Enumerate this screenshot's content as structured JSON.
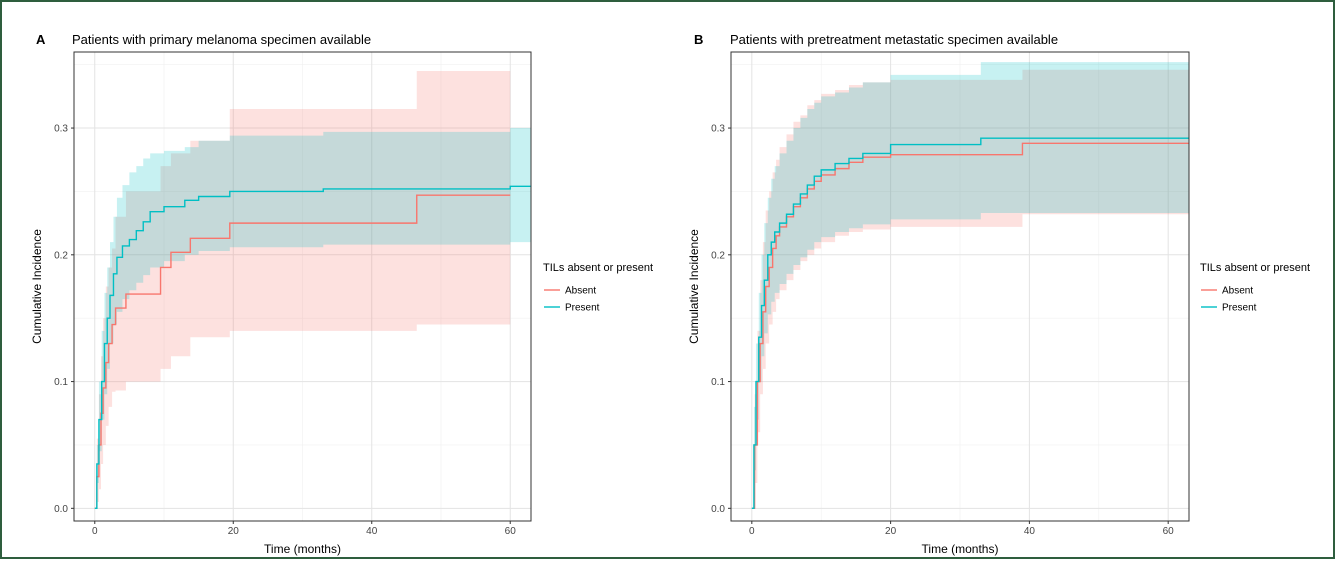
{
  "chart_data": [
    {
      "type": "line",
      "panel_label": "A",
      "title": "Patients with primary melanoma specimen available",
      "xlabel": "Time (months)",
      "ylabel": "Cumulative Incidence",
      "xlim": [
        -3,
        63
      ],
      "ylim": [
        -0.01,
        0.36
      ],
      "x_ticks": [
        0,
        20,
        40,
        60
      ],
      "y_ticks": [
        0.0,
        0.1,
        0.2,
        0.3
      ],
      "y_tick_labels": [
        "0.0",
        "0.1",
        "0.2",
        "0.3"
      ],
      "grid": true,
      "legend_position": "right",
      "legend": {
        "title": "TILs absent or present",
        "entries": [
          {
            "label": "Absent",
            "color": "#F8766D"
          },
          {
            "label": "Present",
            "color": "#00BFC4"
          }
        ]
      },
      "series": [
        {
          "name": "Absent",
          "color": "#F8766D",
          "x": [
            0,
            0.3,
            0.6,
            0.9,
            1.2,
            1.6,
            2.0,
            2.5,
            3.0,
            4.5,
            9.5,
            11.0,
            13.8,
            19.5,
            46.5,
            60
          ],
          "y": [
            0,
            0.025,
            0.05,
            0.075,
            0.095,
            0.115,
            0.13,
            0.145,
            0.158,
            0.169,
            0.19,
            0.202,
            0.213,
            0.225,
            0.247,
            0.247
          ],
          "ci_upper": [
            0,
            0.055,
            0.09,
            0.12,
            0.15,
            0.175,
            0.19,
            0.205,
            0.23,
            0.25,
            0.27,
            0.28,
            0.29,
            0.315,
            0.345,
            0.345
          ],
          "ci_lower": [
            0,
            0.005,
            0.015,
            0.035,
            0.05,
            0.065,
            0.08,
            0.092,
            0.093,
            0.1,
            0.11,
            0.12,
            0.135,
            0.14,
            0.145,
            0.158
          ]
        },
        {
          "name": "Present",
          "color": "#00BFC4",
          "x": [
            0,
            0.3,
            0.6,
            1.0,
            1.4,
            1.8,
            2.2,
            2.7,
            3.2,
            4.0,
            5.0,
            6.0,
            7.0,
            8.0,
            10.0,
            13.0,
            15.0,
            19.5,
            33.0,
            60,
            63
          ],
          "y": [
            0,
            0.035,
            0.07,
            0.1,
            0.13,
            0.15,
            0.168,
            0.185,
            0.198,
            0.207,
            0.212,
            0.219,
            0.226,
            0.234,
            0.238,
            0.243,
            0.246,
            0.25,
            0.252,
            0.254,
            0.254
          ],
          "ci_upper": [
            0,
            0.05,
            0.1,
            0.14,
            0.17,
            0.19,
            0.21,
            0.23,
            0.245,
            0.255,
            0.265,
            0.27,
            0.276,
            0.28,
            0.282,
            0.285,
            0.29,
            0.294,
            0.297,
            0.3,
            0.3
          ],
          "ci_lower": [
            0,
            0.02,
            0.045,
            0.07,
            0.09,
            0.11,
            0.13,
            0.145,
            0.155,
            0.165,
            0.172,
            0.178,
            0.184,
            0.19,
            0.195,
            0.2,
            0.203,
            0.206,
            0.208,
            0.21,
            0.21
          ]
        }
      ]
    },
    {
      "type": "line",
      "panel_label": "B",
      "title": "Patients with pretreatment metastatic specimen available",
      "xlabel": "Time (months)",
      "ylabel": "Cumulative Incidence",
      "xlim": [
        -3,
        63
      ],
      "ylim": [
        -0.01,
        0.36
      ],
      "x_ticks": [
        0,
        20,
        40,
        60
      ],
      "y_ticks": [
        0.0,
        0.1,
        0.2,
        0.3
      ],
      "y_tick_labels": [
        "0.0",
        "0.1",
        "0.2",
        "0.3"
      ],
      "grid": true,
      "legend_position": "right",
      "legend": {
        "title": "TILs absent or present",
        "entries": [
          {
            "label": "Absent",
            "color": "#F8766D"
          },
          {
            "label": "Present",
            "color": "#00BFC4"
          }
        ]
      },
      "series": [
        {
          "name": "Absent",
          "color": "#F8766D",
          "x": [
            0,
            0.4,
            0.8,
            1.2,
            1.6,
            2.0,
            2.5,
            3.0,
            3.5,
            4.0,
            5.0,
            6.0,
            7.0,
            8.0,
            9.0,
            10.0,
            12.0,
            14.0,
            16.0,
            20.0,
            39.0,
            63
          ],
          "y": [
            0,
            0.05,
            0.1,
            0.13,
            0.155,
            0.175,
            0.19,
            0.205,
            0.215,
            0.222,
            0.23,
            0.238,
            0.245,
            0.252,
            0.258,
            0.263,
            0.268,
            0.273,
            0.277,
            0.279,
            0.288,
            0.288
          ],
          "ci_upper": [
            0,
            0.09,
            0.14,
            0.18,
            0.21,
            0.235,
            0.25,
            0.265,
            0.275,
            0.285,
            0.295,
            0.305,
            0.31,
            0.318,
            0.322,
            0.327,
            0.33,
            0.334,
            0.336,
            0.338,
            0.346,
            0.346
          ],
          "ci_lower": [
            0,
            0.02,
            0.06,
            0.09,
            0.11,
            0.13,
            0.145,
            0.155,
            0.165,
            0.172,
            0.18,
            0.188,
            0.195,
            0.2,
            0.205,
            0.21,
            0.215,
            0.218,
            0.22,
            0.222,
            0.232,
            0.232
          ]
        },
        {
          "name": "Present",
          "color": "#00BFC4",
          "x": [
            0,
            0.3,
            0.6,
            1.0,
            1.4,
            1.8,
            2.3,
            2.8,
            3.3,
            4.0,
            5.0,
            6.0,
            7.0,
            8.0,
            9.0,
            10.0,
            12.0,
            14.0,
            16.0,
            20.0,
            33.0,
            63
          ],
          "y": [
            0,
            0.05,
            0.1,
            0.135,
            0.16,
            0.18,
            0.2,
            0.21,
            0.218,
            0.225,
            0.232,
            0.24,
            0.248,
            0.255,
            0.262,
            0.267,
            0.272,
            0.276,
            0.28,
            0.287,
            0.292,
            0.292
          ],
          "ci_upper": [
            0,
            0.08,
            0.13,
            0.17,
            0.2,
            0.225,
            0.245,
            0.26,
            0.27,
            0.28,
            0.29,
            0.3,
            0.308,
            0.315,
            0.32,
            0.325,
            0.328,
            0.332,
            0.336,
            0.342,
            0.352,
            0.352
          ],
          "ci_lower": [
            0,
            0.03,
            0.07,
            0.1,
            0.12,
            0.138,
            0.153,
            0.163,
            0.17,
            0.177,
            0.185,
            0.192,
            0.198,
            0.204,
            0.21,
            0.214,
            0.218,
            0.221,
            0.224,
            0.228,
            0.233,
            0.233
          ]
        }
      ]
    }
  ]
}
